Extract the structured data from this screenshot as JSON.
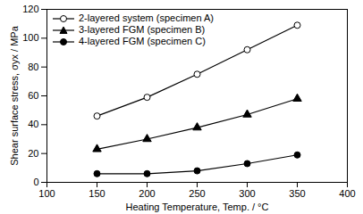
{
  "chart_data": {
    "type": "line",
    "xlabel": "Heating Temperature, Temp. / °C",
    "ylabel": "Shear surface stress, σyx / MPa",
    "x": [
      150,
      200,
      250,
      300,
      350
    ],
    "series": [
      {
        "name": "2-layered system (specimen A)",
        "color": "#000000",
        "marker": "circle-open",
        "values": [
          46,
          59,
          75,
          92,
          109
        ]
      },
      {
        "name": "3-layered FGM (specimen B)",
        "color": "#000000",
        "marker": "triangle",
        "values": [
          23,
          30,
          38,
          47,
          58
        ]
      },
      {
        "name": "4-layered FGM (specimen C)",
        "color": "#000000",
        "marker": "circle",
        "values": [
          6,
          6,
          8,
          13,
          19
        ]
      }
    ],
    "xlim": [
      100,
      400
    ],
    "xticks": [
      100,
      150,
      200,
      250,
      300,
      350,
      400
    ],
    "ylim": [
      0,
      120
    ],
    "yticks": [
      0,
      20,
      40,
      60,
      80,
      100,
      120
    ],
    "grid": false,
    "legend": "top-left"
  }
}
